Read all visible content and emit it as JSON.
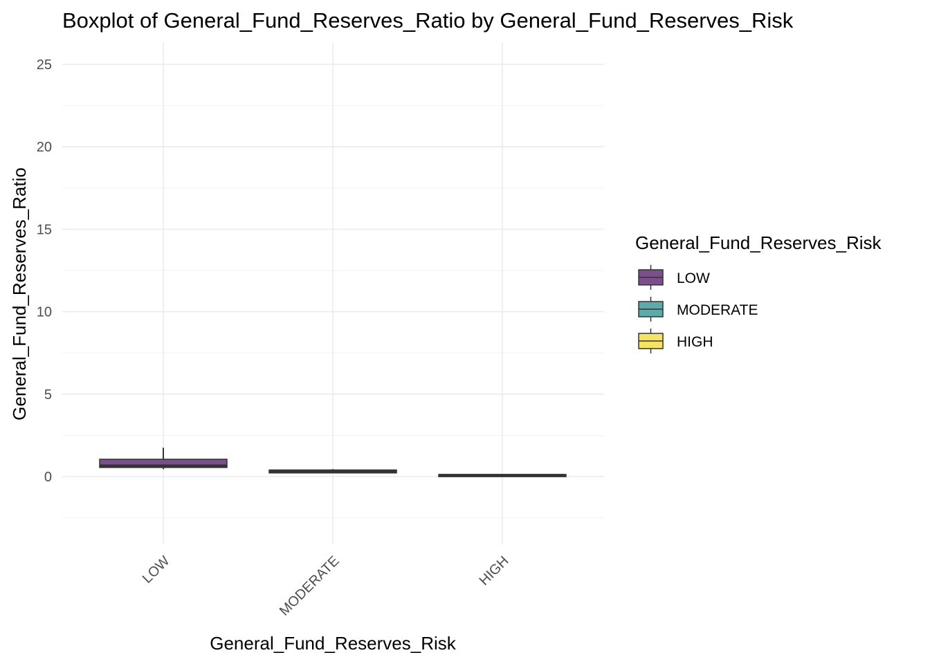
{
  "chart_data": {
    "type": "box",
    "title": "Boxplot of General_Fund_Reserves_Ratio by General_Fund_Reserves_Risk",
    "xlabel": "General_Fund_Reserves_Risk",
    "ylabel": "General_Fund_Reserves_Ratio",
    "categories": [
      "LOW",
      "MODERATE",
      "HIGH"
    ],
    "ylim": [
      -4,
      26
    ],
    "yticks": [
      0,
      5,
      10,
      15,
      20,
      25
    ],
    "grid": true,
    "legend": {
      "title": "General_Fund_Reserves_Risk",
      "position": "right",
      "items": [
        {
          "label": "LOW",
          "color": "#7b4f8b"
        },
        {
          "label": "MODERATE",
          "color": "#5eaaaa"
        },
        {
          "label": "HIGH",
          "color": "#f6e264"
        }
      ]
    },
    "boxes": [
      {
        "category": "LOW",
        "min": 0.45,
        "q1": 0.55,
        "median": 0.65,
        "q3": 1.05,
        "max": 1.75,
        "color": "#7b4f8b"
      },
      {
        "category": "MODERATE",
        "min": 0.2,
        "q1": 0.22,
        "median": 0.3,
        "q3": 0.4,
        "max": 0.45,
        "color": "#5eaaaa"
      },
      {
        "category": "HIGH",
        "min": 0.0,
        "q1": 0.05,
        "median": 0.08,
        "q3": 0.12,
        "max": 0.15,
        "color": "#f6e264"
      }
    ]
  }
}
